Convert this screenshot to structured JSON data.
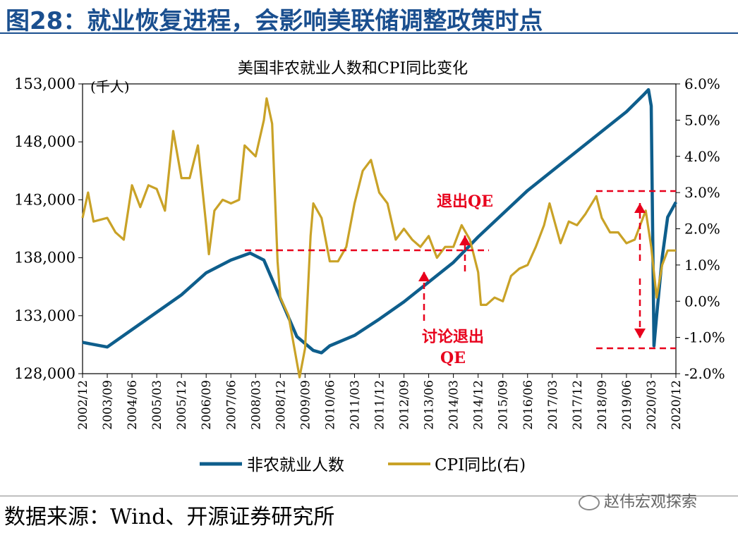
{
  "figure_title": "图28：就业恢复进程，会影响美联储调整政策时点",
  "source": "数据来源：Wind、开源证券研究所",
  "watermark": "赵伟宏观探索",
  "colors": {
    "payrolls": "#0e5e8c",
    "cpi": "#c9a227",
    "annotation": "#e8001c",
    "title": "#1a4f8f"
  },
  "chart_data": {
    "type": "line",
    "title": "美国非农就业人数和CPI同比变化",
    "y_unit_label": "(千人)",
    "y_left_ticks": [
      "128,000",
      "133,000",
      "138,000",
      "143,000",
      "148,000",
      "153,000"
    ],
    "y_left_range": [
      128000,
      153000
    ],
    "y_right_ticks": [
      "-2.0%",
      "-1.0%",
      "0.0%",
      "1.0%",
      "2.0%",
      "3.0%",
      "4.0%",
      "5.0%",
      "6.0%"
    ],
    "y_right_range": [
      -2.0,
      6.0
    ],
    "x_tick_labels": [
      "2002/12",
      "2003/09",
      "2004/06",
      "2005/03",
      "2005/12",
      "2006/09",
      "2007/06",
      "2008/03",
      "2008/12",
      "2009/09",
      "2010/06",
      "2011/03",
      "2011/12",
      "2012/09",
      "2013/06",
      "2014/03",
      "2014/12",
      "2015/09",
      "2016/06",
      "2017/03",
      "2017/12",
      "2018/09",
      "2019/06",
      "2020/03",
      "2020/12"
    ],
    "legend": [
      "非农就业人数",
      "CPI同比(右)"
    ],
    "series": [
      {
        "name": "非农就业人数",
        "axis": "left",
        "points": [
          [
            "2002/12",
            130700
          ],
          [
            "2003/09",
            130300
          ],
          [
            "2004/06",
            131800
          ],
          [
            "2005/03",
            133300
          ],
          [
            "2005/12",
            134800
          ],
          [
            "2006/09",
            136700
          ],
          [
            "2007/06",
            137800
          ],
          [
            "2008/01",
            138400
          ],
          [
            "2008/06",
            137800
          ],
          [
            "2008/12",
            134500
          ],
          [
            "2009/06",
            131200
          ],
          [
            "2009/12",
            130000
          ],
          [
            "2010/03",
            129800
          ],
          [
            "2010/06",
            130400
          ],
          [
            "2011/03",
            131300
          ],
          [
            "2011/12",
            132700
          ],
          [
            "2012/09",
            134200
          ],
          [
            "2013/06",
            135900
          ],
          [
            "2014/03",
            137600
          ],
          [
            "2014/12",
            139800
          ],
          [
            "2015/09",
            141800
          ],
          [
            "2016/06",
            143800
          ],
          [
            "2017/03",
            145500
          ],
          [
            "2017/12",
            147200
          ],
          [
            "2018/09",
            148900
          ],
          [
            "2019/06",
            150600
          ],
          [
            "2019/12",
            152000
          ],
          [
            "2020/02",
            152500
          ],
          [
            "2020/03",
            151100
          ],
          [
            "2020/04",
            130400
          ],
          [
            "2020/05",
            133000
          ],
          [
            "2020/07",
            138000
          ],
          [
            "2020/09",
            141500
          ],
          [
            "2020/12",
            142800
          ]
        ]
      },
      {
        "name": "CPI同比(右)",
        "axis": "right",
        "points": [
          [
            "2002/12",
            2.3
          ],
          [
            "2003/02",
            3.0
          ],
          [
            "2003/04",
            2.2
          ],
          [
            "2003/09",
            2.3
          ],
          [
            "2003/12",
            1.9
          ],
          [
            "2004/03",
            1.7
          ],
          [
            "2004/06",
            3.2
          ],
          [
            "2004/09",
            2.6
          ],
          [
            "2004/12",
            3.2
          ],
          [
            "2005/03",
            3.1
          ],
          [
            "2005/06",
            2.5
          ],
          [
            "2005/09",
            4.7
          ],
          [
            "2005/12",
            3.4
          ],
          [
            "2006/03",
            3.4
          ],
          [
            "2006/06",
            4.3
          ],
          [
            "2006/09",
            2.1
          ],
          [
            "2006/10",
            1.3
          ],
          [
            "2006/12",
            2.5
          ],
          [
            "2007/03",
            2.8
          ],
          [
            "2007/06",
            2.7
          ],
          [
            "2007/09",
            2.8
          ],
          [
            "2007/11",
            4.3
          ],
          [
            "2008/03",
            4.0
          ],
          [
            "2008/06",
            5.0
          ],
          [
            "2008/07",
            5.6
          ],
          [
            "2008/09",
            4.9
          ],
          [
            "2008/11",
            1.1
          ],
          [
            "2008/12",
            0.1
          ],
          [
            "2009/03",
            -0.4
          ],
          [
            "2009/07",
            -2.1
          ],
          [
            "2009/09",
            -1.3
          ],
          [
            "2009/11",
            1.8
          ],
          [
            "2009/12",
            2.7
          ],
          [
            "2010/03",
            2.3
          ],
          [
            "2010/06",
            1.1
          ],
          [
            "2010/09",
            1.1
          ],
          [
            "2010/12",
            1.5
          ],
          [
            "2011/03",
            2.7
          ],
          [
            "2011/06",
            3.6
          ],
          [
            "2011/09",
            3.9
          ],
          [
            "2011/12",
            3.0
          ],
          [
            "2012/03",
            2.7
          ],
          [
            "2012/06",
            1.7
          ],
          [
            "2012/09",
            2.0
          ],
          [
            "2012/12",
            1.7
          ],
          [
            "2013/03",
            1.5
          ],
          [
            "2013/06",
            1.8
          ],
          [
            "2013/09",
            1.2
          ],
          [
            "2013/12",
            1.5
          ],
          [
            "2014/03",
            1.5
          ],
          [
            "2014/06",
            2.1
          ],
          [
            "2014/09",
            1.7
          ],
          [
            "2014/12",
            0.8
          ],
          [
            "2015/01",
            -0.1
          ],
          [
            "2015/03",
            -0.1
          ],
          [
            "2015/06",
            0.1
          ],
          [
            "2015/09",
            0.0
          ],
          [
            "2015/12",
            0.7
          ],
          [
            "2016/03",
            0.9
          ],
          [
            "2016/06",
            1.0
          ],
          [
            "2016/09",
            1.5
          ],
          [
            "2016/12",
            2.1
          ],
          [
            "2017/02",
            2.7
          ],
          [
            "2017/06",
            1.6
          ],
          [
            "2017/09",
            2.2
          ],
          [
            "2017/12",
            2.1
          ],
          [
            "2018/03",
            2.4
          ],
          [
            "2018/07",
            2.9
          ],
          [
            "2018/09",
            2.3
          ],
          [
            "2018/12",
            1.9
          ],
          [
            "2019/03",
            1.9
          ],
          [
            "2019/06",
            1.6
          ],
          [
            "2019/09",
            1.7
          ],
          [
            "2019/12",
            2.3
          ],
          [
            "2020/01",
            2.5
          ],
          [
            "2020/03",
            1.5
          ],
          [
            "2020/05",
            0.1
          ],
          [
            "2020/07",
            1.0
          ],
          [
            "2020/09",
            1.4
          ],
          [
            "2020/12",
            1.4
          ]
        ]
      }
    ],
    "annotations": [
      "退出QE",
      "讨论退出QE"
    ]
  }
}
